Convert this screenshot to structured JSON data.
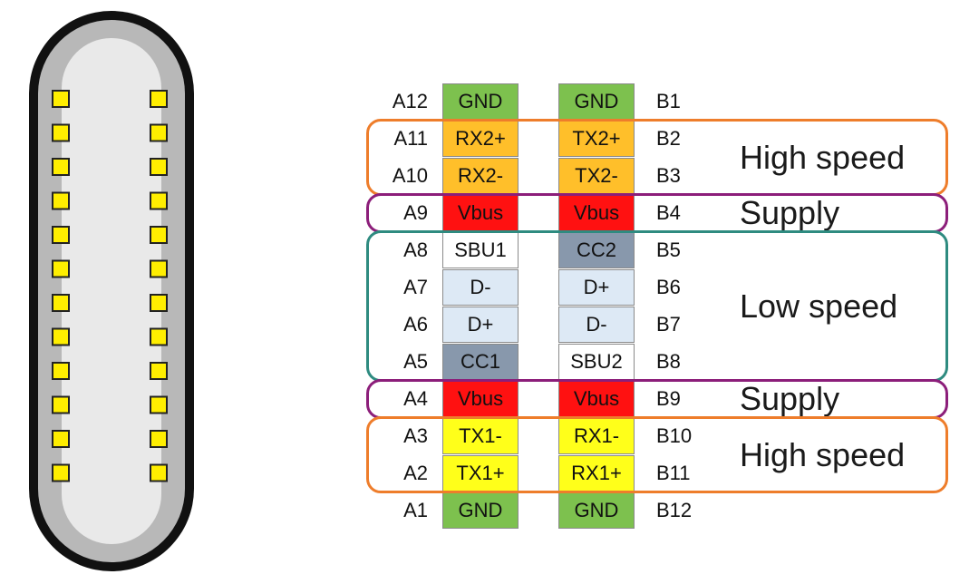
{
  "colors": {
    "gnd": "#7dc14e",
    "high_speed_pair2": "#ffbf2a",
    "vbus": "#ff1111",
    "cc": "#8898ac",
    "d_line": "#dde9f5",
    "sbu": "#ffffff",
    "high_speed_pair1": "#ffff1a",
    "high_speed_border": "#ee7d2b",
    "supply_border": "#8c1e7a",
    "low_speed_border": "#2e8b80",
    "connector_outer": "#111111",
    "connector_ring": "#b8b8b8",
    "connector_inner": "#e9e9e9",
    "contact": "#ffee00"
  },
  "connector": {
    "contacts_per_side": 12
  },
  "rows": [
    {
      "left_pin": "A12",
      "left_signal": "GND",
      "left_type": "gnd",
      "right_signal": "GND",
      "right_type": "gnd",
      "right_pin": "B1"
    },
    {
      "left_pin": "A11",
      "left_signal": "RX2+",
      "left_type": "high_speed_pair2",
      "right_signal": "TX2+",
      "right_type": "high_speed_pair2",
      "right_pin": "B2"
    },
    {
      "left_pin": "A10",
      "left_signal": "RX2-",
      "left_type": "high_speed_pair2",
      "right_signal": "TX2-",
      "right_type": "high_speed_pair2",
      "right_pin": "B3"
    },
    {
      "left_pin": "A9",
      "left_signal": "Vbus",
      "left_type": "vbus",
      "right_signal": "Vbus",
      "right_type": "vbus",
      "right_pin": "B4"
    },
    {
      "left_pin": "A8",
      "left_signal": "SBU1",
      "left_type": "sbu",
      "right_signal": "CC2",
      "right_type": "cc",
      "right_pin": "B5"
    },
    {
      "left_pin": "A7",
      "left_signal": "D-",
      "left_type": "d_line",
      "right_signal": "D+",
      "right_type": "d_line",
      "right_pin": "B6"
    },
    {
      "left_pin": "A6",
      "left_signal": "D+",
      "left_type": "d_line",
      "right_signal": "D-",
      "right_type": "d_line",
      "right_pin": "B7"
    },
    {
      "left_pin": "A5",
      "left_signal": "CC1",
      "left_type": "cc",
      "right_signal": "SBU2",
      "right_type": "sbu",
      "right_pin": "B8"
    },
    {
      "left_pin": "A4",
      "left_signal": "Vbus",
      "left_type": "vbus",
      "right_signal": "Vbus",
      "right_type": "vbus",
      "right_pin": "B9"
    },
    {
      "left_pin": "A3",
      "left_signal": "TX1-",
      "left_type": "high_speed_pair1",
      "right_signal": "RX1-",
      "right_type": "high_speed_pair1",
      "right_pin": "B10"
    },
    {
      "left_pin": "A2",
      "left_signal": "TX1+",
      "left_type": "high_speed_pair1",
      "right_signal": "RX1+",
      "right_type": "high_speed_pair1",
      "right_pin": "B11"
    },
    {
      "left_pin": "A1",
      "left_signal": "GND",
      "left_type": "gnd",
      "right_signal": "GND",
      "right_type": "gnd",
      "right_pin": "B12"
    }
  ],
  "groups": [
    {
      "label": "High speed",
      "first_row": 1,
      "last_row": 2,
      "border": "high_speed_border"
    },
    {
      "label": "Supply",
      "first_row": 3,
      "last_row": 3,
      "border": "supply_border"
    },
    {
      "label": "Low speed",
      "first_row": 4,
      "last_row": 7,
      "border": "low_speed_border"
    },
    {
      "label": "Supply",
      "first_row": 8,
      "last_row": 8,
      "border": "supply_border"
    },
    {
      "label": "High speed",
      "first_row": 9,
      "last_row": 10,
      "border": "high_speed_border"
    }
  ]
}
